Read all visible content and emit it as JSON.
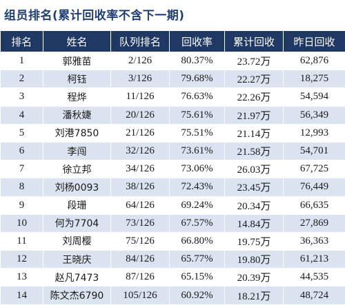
{
  "title": "组员排名(累计回收率不含下一期)",
  "table": {
    "headers": [
      "排名",
      "姓名",
      "队列排名",
      "回收率",
      "累计回收",
      "昨日回收"
    ],
    "rows": [
      [
        "1",
        "郭雅苗",
        "2/126",
        "80.37%",
        "23.72万",
        "62,876"
      ],
      [
        "2",
        "柯钰",
        "3/126",
        "79.68%",
        "22.27万",
        "18,275"
      ],
      [
        "3",
        "程烨",
        "11/126",
        "76.63%",
        "22.26万",
        "54,594"
      ],
      [
        "4",
        "潘秋婕",
        "20/126",
        "75.61%",
        "21.97万",
        "56,349"
      ],
      [
        "5",
        "刘港7850",
        "21/126",
        "75.51%",
        "21.14万",
        "12,993"
      ],
      [
        "6",
        "李闯",
        "32/126",
        "73.61%",
        "21.58万",
        "54,701"
      ],
      [
        "7",
        "徐立邦",
        "34/126",
        "73.06%",
        "26.03万",
        "67,725"
      ],
      [
        "8",
        "刘杨0093",
        "38/126",
        "72.43%",
        "23.45万",
        "76,449"
      ],
      [
        "9",
        "段珊",
        "64/126",
        "69.24%",
        "20.34万",
        "66,635"
      ],
      [
        "10",
        "何为7704",
        "73/126",
        "67.57%",
        "14.84万",
        "27,869"
      ],
      [
        "11",
        "刘周樱",
        "75/126",
        "66.80%",
        "19.75万",
        "36,363"
      ],
      [
        "12",
        "王晓庆",
        "84/126",
        "65.77%",
        "19.80万",
        "61,213"
      ],
      [
        "13",
        "赵凡7473",
        "87/126",
        "65.15%",
        "20.39万",
        "44,535"
      ],
      [
        "14",
        "陈文杰6790",
        "105/126",
        "60.92%",
        "18.21万",
        "48,724"
      ]
    ]
  }
}
